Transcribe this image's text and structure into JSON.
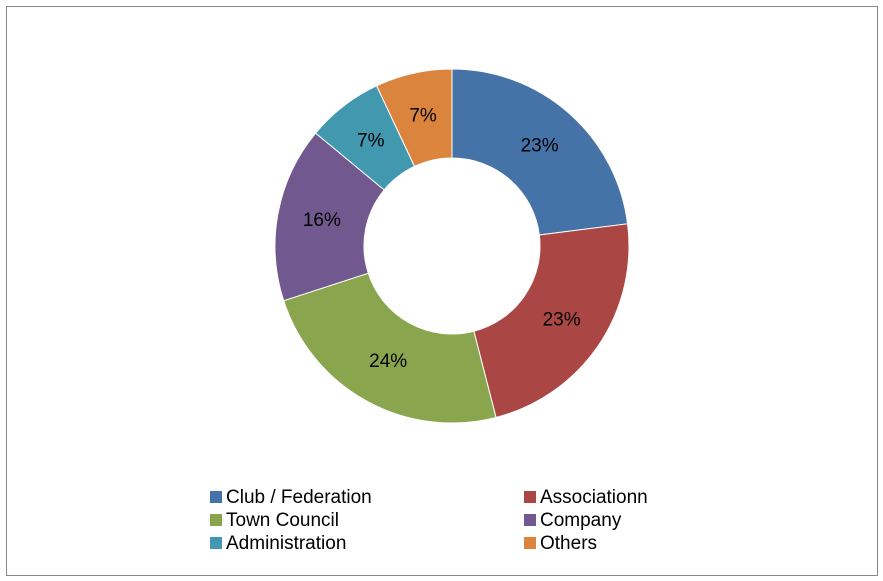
{
  "chart_data": {
    "type": "donut",
    "categories": [
      "Club / Federation",
      "Associationn",
      "Town Council",
      "Company",
      "Administration",
      "Others"
    ],
    "values": [
      23,
      23,
      24,
      16,
      7,
      7
    ],
    "value_labels": [
      "23%",
      "23%",
      "24%",
      "16%",
      "7%",
      "7%"
    ],
    "colors": [
      "#4572a7",
      "#aa4643",
      "#89a54e",
      "#71588f",
      "#4198af",
      "#db843d"
    ],
    "legend": "bottom"
  }
}
